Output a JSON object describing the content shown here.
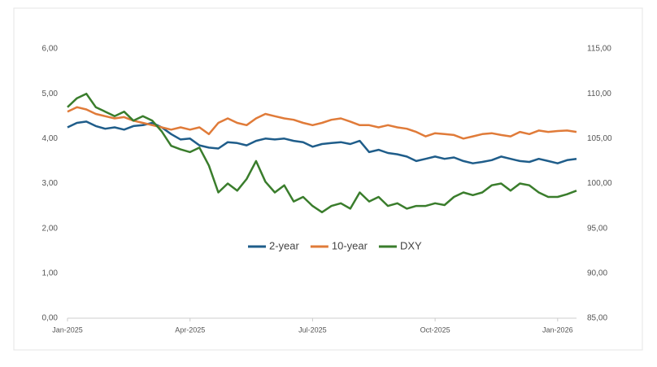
{
  "chart_data": {
    "type": "line",
    "categories": [
      "Jan-2025",
      null,
      null,
      null,
      null,
      null,
      null,
      null,
      null,
      null,
      null,
      null,
      null,
      "Apr-2025",
      null,
      null,
      null,
      null,
      null,
      null,
      null,
      null,
      null,
      null,
      null,
      null,
      "Jul-2025",
      null,
      null,
      null,
      null,
      null,
      null,
      null,
      null,
      null,
      null,
      null,
      null,
      "Oct-2025",
      null,
      null,
      null,
      null,
      null,
      null,
      null,
      null,
      null,
      null,
      null,
      null,
      "Jan-2026",
      null,
      null
    ],
    "series": [
      {
        "name": "2-year",
        "color": "#1f5d8a",
        "values": [
          4.25,
          4.35,
          4.38,
          4.28,
          4.22,
          4.25,
          4.2,
          4.28,
          4.3,
          4.35,
          4.25,
          4.1,
          3.98,
          4.0,
          3.85,
          3.8,
          3.78,
          3.92,
          3.9,
          3.85,
          3.95,
          4.0,
          3.98,
          4.0,
          3.95,
          3.92,
          3.82,
          3.88,
          3.9,
          3.92,
          3.88,
          3.95,
          3.7,
          3.75,
          3.68,
          3.65,
          3.6,
          3.5,
          3.55,
          3.6,
          3.55,
          3.58,
          3.5,
          3.45,
          3.48,
          3.52,
          3.6,
          3.55,
          3.5,
          3.48,
          3.55,
          3.5,
          3.45,
          3.52,
          3.55
        ]
      },
      {
        "name": "10-year",
        "color": "#e07b39",
        "values": [
          4.6,
          4.7,
          4.65,
          4.55,
          4.5,
          4.45,
          4.48,
          4.4,
          4.35,
          4.3,
          4.25,
          4.2,
          4.25,
          4.2,
          4.25,
          4.1,
          4.35,
          4.45,
          4.35,
          4.3,
          4.45,
          4.55,
          4.5,
          4.45,
          4.42,
          4.35,
          4.3,
          4.35,
          4.42,
          4.45,
          4.38,
          4.3,
          4.3,
          4.25,
          4.3,
          4.25,
          4.22,
          4.15,
          4.05,
          4.12,
          4.1,
          4.08,
          4.0,
          4.05,
          4.1,
          4.12,
          4.08,
          4.05,
          4.15,
          4.1,
          4.18,
          4.15,
          4.17,
          4.18,
          4.15
        ]
      },
      {
        "name": "DXY",
        "color": "#3a7d2c",
        "axis": "y2",
        "values": [
          108.5,
          109.5,
          110,
          108.5,
          108,
          107.5,
          108,
          107,
          107.5,
          107,
          105.8,
          104.2,
          103.8,
          103.5,
          104,
          102,
          99,
          100,
          99.2,
          100.5,
          102.5,
          100.2,
          99,
          99.8,
          98,
          98.5,
          97.5,
          96.8,
          97.5,
          97.8,
          97.2,
          99,
          98,
          98.5,
          97.5,
          97.8,
          97.2,
          97.5,
          97.5,
          97.8,
          97.6,
          98.5,
          99,
          98.7,
          99,
          99.8,
          100,
          99.2,
          100,
          99.8,
          99,
          98.5,
          98.5,
          98.8,
          99.2
        ]
      }
    ],
    "ylim": [
      0,
      6
    ],
    "yticks": [
      {
        "value": 0,
        "label": "0,00"
      },
      {
        "value": 1,
        "label": "1,00"
      },
      {
        "value": 2,
        "label": "2,00"
      },
      {
        "value": 3,
        "label": "3,00"
      },
      {
        "value": 4,
        "label": "4,00"
      },
      {
        "value": 5,
        "label": "5,00"
      },
      {
        "value": 6,
        "label": "6,00"
      }
    ],
    "y2lim": [
      85,
      115
    ],
    "y2ticks": [
      {
        "value": 85,
        "label": "85,00"
      },
      {
        "value": 90,
        "label": "90,00"
      },
      {
        "value": 95,
        "label": "95,00"
      },
      {
        "value": 100,
        "label": "100,00"
      },
      {
        "value": 105,
        "label": "105,00"
      },
      {
        "value": 110,
        "label": "110,00"
      },
      {
        "value": 115,
        "label": "115,00"
      }
    ]
  }
}
